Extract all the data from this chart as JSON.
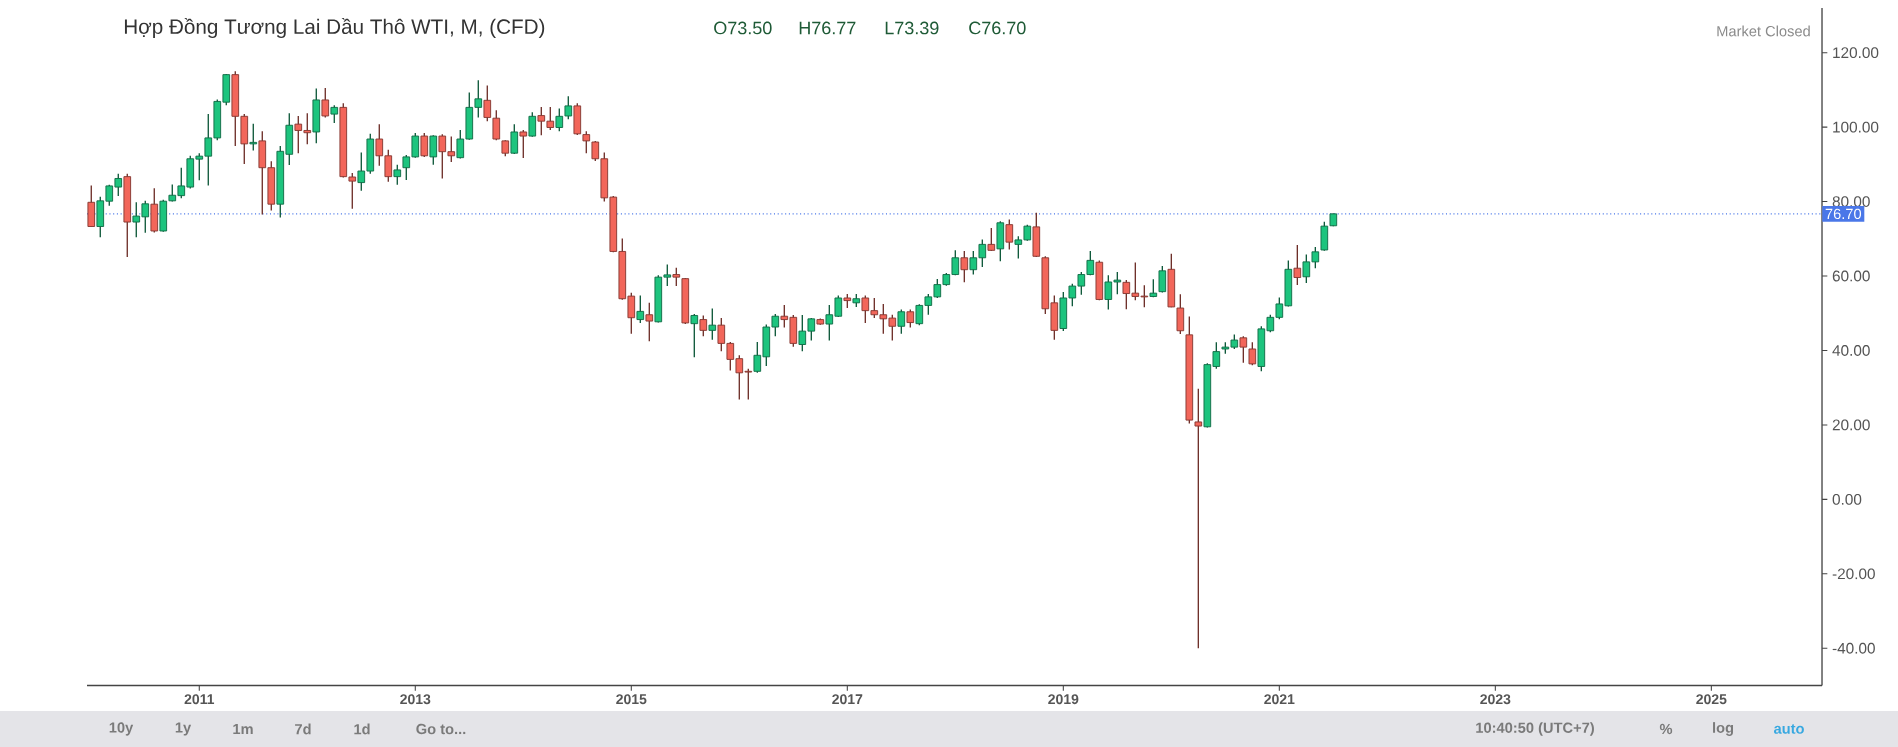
{
  "chart_data": {
    "type": "candlestick",
    "title": "Hợp Đồng Tương Lai Dầu Thô WTI, M, (CFD)",
    "annotations": [
      "O73.50",
      "H76.77",
      "L73.39",
      "C76.70",
      "Market Closed",
      "10y",
      "1y",
      "1m",
      "7d",
      "1d",
      "Go to...",
      "10:40:50 (UTC+7)",
      "%",
      "log",
      "auto"
    ],
    "x": [
      "2010-01",
      "2010-02",
      "2010-03",
      "2010-04",
      "2010-05",
      "2010-06",
      "2010-07",
      "2010-08",
      "2010-09",
      "2010-10",
      "2010-11",
      "2010-12",
      "2011-01",
      "2011-02",
      "2011-03",
      "2011-04",
      "2011-05",
      "2011-06",
      "2011-07",
      "2011-08",
      "2011-09",
      "2011-10",
      "2011-11",
      "2011-12",
      "2012-01",
      "2012-02",
      "2012-03",
      "2012-04",
      "2012-05",
      "2012-06",
      "2012-07",
      "2012-08",
      "2012-09",
      "2012-10",
      "2012-11",
      "2012-12",
      "2013-01",
      "2013-02",
      "2013-03",
      "2013-04",
      "2013-05",
      "2013-06",
      "2013-07",
      "2013-08",
      "2013-09",
      "2013-10",
      "2013-11",
      "2013-12",
      "2014-01",
      "2014-02",
      "2014-03",
      "2014-04",
      "2014-05",
      "2014-06",
      "2014-07",
      "2014-08",
      "2014-09",
      "2014-10",
      "2014-11",
      "2014-12",
      "2015-01",
      "2015-02",
      "2015-03",
      "2015-04",
      "2015-05",
      "2015-06",
      "2015-07",
      "2015-08",
      "2015-09",
      "2015-10",
      "2015-11",
      "2015-12",
      "2016-01",
      "2016-02",
      "2016-03",
      "2016-04",
      "2016-05",
      "2016-06",
      "2016-07",
      "2016-08",
      "2016-09",
      "2016-10",
      "2016-11",
      "2016-12",
      "2017-01",
      "2017-02",
      "2017-03",
      "2017-04",
      "2017-05",
      "2017-06",
      "2017-07",
      "2017-08",
      "2017-09",
      "2017-10",
      "2017-11",
      "2017-12",
      "2018-01",
      "2018-02",
      "2018-03",
      "2018-04",
      "2018-05",
      "2018-06",
      "2018-07",
      "2018-08",
      "2018-09",
      "2018-10",
      "2018-11",
      "2018-12",
      "2019-01",
      "2019-02",
      "2019-03",
      "2019-04",
      "2019-05",
      "2019-06",
      "2019-07",
      "2019-08",
      "2019-09",
      "2019-10",
      "2019-11",
      "2019-12",
      "2020-01",
      "2020-02",
      "2020-03",
      "2020-04",
      "2020-05",
      "2020-06",
      "2020-07",
      "2020-08",
      "2020-09",
      "2020-10",
      "2020-11",
      "2020-12",
      "2021-01",
      "2021-02",
      "2021-03",
      "2021-04",
      "2021-05",
      "2021-06",
      "2021-07"
    ],
    "ohlc": [
      [
        79.8,
        84.3,
        73.3,
        73.3
      ],
      [
        73.3,
        81.3,
        70.4,
        80.2
      ],
      [
        80.1,
        84.5,
        78.9,
        84.2
      ],
      [
        83.9,
        87.5,
        81.5,
        86.2
      ],
      [
        86.7,
        87.5,
        65.1,
        74.5
      ],
      [
        74.5,
        79.8,
        70.4,
        76.1
      ],
      [
        75.9,
        80.2,
        71.6,
        79.4
      ],
      [
        79.3,
        83.6,
        71.7,
        72.1
      ],
      [
        72.1,
        80.5,
        71.9,
        80.1
      ],
      [
        80.2,
        84.6,
        80.0,
        81.7
      ],
      [
        81.6,
        89.1,
        80.9,
        84.2
      ],
      [
        83.9,
        92.3,
        83.5,
        91.5
      ],
      [
        91.4,
        93.0,
        85.7,
        92.2
      ],
      [
        92.2,
        103.5,
        84.3,
        97.1
      ],
      [
        97.1,
        107.4,
        96.5,
        106.9
      ],
      [
        106.7,
        114.3,
        105.9,
        114.1
      ],
      [
        114.1,
        115.0,
        94.9,
        102.9
      ],
      [
        102.9,
        103.5,
        90.1,
        95.5
      ],
      [
        95.5,
        100.9,
        93.7,
        95.9
      ],
      [
        96.3,
        98.9,
        76.5,
        89.1
      ],
      [
        89.1,
        90.8,
        77.6,
        79.3
      ],
      [
        79.3,
        94.9,
        75.7,
        93.5
      ],
      [
        92.7,
        103.7,
        89.8,
        100.5
      ],
      [
        100.8,
        103.0,
        93.0,
        99.1
      ],
      [
        99.1,
        103.7,
        95.4,
        98.5
      ],
      [
        98.7,
        110.4,
        95.7,
        107.3
      ],
      [
        107.3,
        110.5,
        102.6,
        103.0
      ],
      [
        103.5,
        105.9,
        101.1,
        105.3
      ],
      [
        105.3,
        106.4,
        86.5,
        86.7
      ],
      [
        86.6,
        87.7,
        78.1,
        85.5
      ],
      [
        85.1,
        93.2,
        82.9,
        88.2
      ],
      [
        88.2,
        98.2,
        87.5,
        96.8
      ],
      [
        96.8,
        100.8,
        89.6,
        92.3
      ],
      [
        92.3,
        93.9,
        85.3,
        86.7
      ],
      [
        86.7,
        89.9,
        84.5,
        88.5
      ],
      [
        89.1,
        92.5,
        85.8,
        92.0
      ],
      [
        92.0,
        98.4,
        91.8,
        97.6
      ],
      [
        97.6,
        98.4,
        92.0,
        92.3
      ],
      [
        92.0,
        97.8,
        89.9,
        97.6
      ],
      [
        97.6,
        98.1,
        86.2,
        93.4
      ],
      [
        93.4,
        97.5,
        90.6,
        92.3
      ],
      [
        91.8,
        99.2,
        91.6,
        96.8
      ],
      [
        96.8,
        109.3,
        96.6,
        105.3
      ],
      [
        105.3,
        112.6,
        102.6,
        107.6
      ],
      [
        107.2,
        111.2,
        101.6,
        102.6
      ],
      [
        102.4,
        104.5,
        96.5,
        96.8
      ],
      [
        96.3,
        96.5,
        92.2,
        93.0
      ],
      [
        93.0,
        100.8,
        92.8,
        98.7
      ],
      [
        98.7,
        99.2,
        91.7,
        97.6
      ],
      [
        97.6,
        104.0,
        97.4,
        102.9
      ],
      [
        103.1,
        105.4,
        97.8,
        101.6
      ],
      [
        101.6,
        105.4,
        99.2,
        99.9
      ],
      [
        99.9,
        105.0,
        98.9,
        102.9
      ],
      [
        103.0,
        108.3,
        102.1,
        105.7
      ],
      [
        105.7,
        106.4,
        97.9,
        98.2
      ],
      [
        98.0,
        98.9,
        93.0,
        96.3
      ],
      [
        96.0,
        96.3,
        90.9,
        91.5
      ],
      [
        91.5,
        93.2,
        80.0,
        81.0
      ],
      [
        81.2,
        81.5,
        66.4,
        66.6
      ],
      [
        66.6,
        70.1,
        53.6,
        53.9
      ],
      [
        54.6,
        55.5,
        44.5,
        48.8
      ],
      [
        48.3,
        54.8,
        47.4,
        50.5
      ],
      [
        49.6,
        52.8,
        42.5,
        47.9
      ],
      [
        47.7,
        60.2,
        47.5,
        59.7
      ],
      [
        59.7,
        63.1,
        57.3,
        60.3
      ],
      [
        60.4,
        62.2,
        57.3,
        59.7
      ],
      [
        59.3,
        59.5,
        47.1,
        47.4
      ],
      [
        47.2,
        49.8,
        38.2,
        49.4
      ],
      [
        48.3,
        49.4,
        43.8,
        45.4
      ],
      [
        45.4,
        51.3,
        42.9,
        46.8
      ],
      [
        46.8,
        48.7,
        39.8,
        41.9
      ],
      [
        41.9,
        42.3,
        34.6,
        37.6
      ],
      [
        37.8,
        38.7,
        26.8,
        34.0
      ],
      [
        34.4,
        35.1,
        26.8,
        34.2
      ],
      [
        34.4,
        42.3,
        34.0,
        38.7
      ],
      [
        38.3,
        47.0,
        35.8,
        46.3
      ],
      [
        46.3,
        49.8,
        43.8,
        49.2
      ],
      [
        49.2,
        52.2,
        46.2,
        48.3
      ],
      [
        48.9,
        49.5,
        41.0,
        41.9
      ],
      [
        41.6,
        49.5,
        39.8,
        45.2
      ],
      [
        45.2,
        48.7,
        42.7,
        48.5
      ],
      [
        48.3,
        48.6,
        46.9,
        47.1
      ],
      [
        47.1,
        52.2,
        42.7,
        49.6
      ],
      [
        49.2,
        54.8,
        49.0,
        54.1
      ],
      [
        54.1,
        55.2,
        51.4,
        53.4
      ],
      [
        52.8,
        55.2,
        51.7,
        53.9
      ],
      [
        54.1,
        54.8,
        47.4,
        50.7
      ],
      [
        50.7,
        54.1,
        48.7,
        49.6
      ],
      [
        49.6,
        52.5,
        44.5,
        48.5
      ],
      [
        48.7,
        49.6,
        42.7,
        46.5
      ],
      [
        46.5,
        51.0,
        44.5,
        50.4
      ],
      [
        50.4,
        51.0,
        46.2,
        47.5
      ],
      [
        47.2,
        52.4,
        46.8,
        52.1
      ],
      [
        52.1,
        55.2,
        49.6,
        54.4
      ],
      [
        54.4,
        59.2,
        54.1,
        57.7
      ],
      [
        57.7,
        60.8,
        57.4,
        60.4
      ],
      [
        60.4,
        66.9,
        60.2,
        64.9
      ],
      [
        64.9,
        66.7,
        58.3,
        61.7
      ],
      [
        61.7,
        66.7,
        60.4,
        64.9
      ],
      [
        64.9,
        69.8,
        62.4,
        68.5
      ],
      [
        68.5,
        72.9,
        66.7,
        66.9
      ],
      [
        67.3,
        74.7,
        64.0,
        74.3
      ],
      [
        73.8,
        75.2,
        67.1,
        69.1
      ],
      [
        68.5,
        70.7,
        64.7,
        69.7
      ],
      [
        69.7,
        73.8,
        69.5,
        73.4
      ],
      [
        73.2,
        77.0,
        65.1,
        65.3
      ],
      [
        64.9,
        65.3,
        49.8,
        51.2
      ],
      [
        52.8,
        54.8,
        42.9,
        45.4
      ],
      [
        45.9,
        55.7,
        45.2,
        54.1
      ],
      [
        54.1,
        57.9,
        51.9,
        57.3
      ],
      [
        57.3,
        61.1,
        55.0,
        60.4
      ],
      [
        60.4,
        66.7,
        60.2,
        64.2
      ],
      [
        63.7,
        64.2,
        53.5,
        53.7
      ],
      [
        53.7,
        60.2,
        51.0,
        58.4
      ],
      [
        58.4,
        61.1,
        55.1,
        58.9
      ],
      [
        58.3,
        58.9,
        51.1,
        55.3
      ],
      [
        55.4,
        63.6,
        53.5,
        54.5
      ],
      [
        54.6,
        57.5,
        51.6,
        54.4
      ],
      [
        54.5,
        59.1,
        54.3,
        55.4
      ],
      [
        55.8,
        62.7,
        55.6,
        61.4
      ],
      [
        61.8,
        66.0,
        51.6,
        51.7
      ],
      [
        51.4,
        55.1,
        44.4,
        45.3
      ],
      [
        44.2,
        49.1,
        20.4,
        21.3
      ],
      [
        20.8,
        29.7,
        -40.0,
        19.7
      ],
      [
        19.5,
        36.6,
        19.3,
        36.2
      ],
      [
        35.7,
        42.2,
        35.1,
        39.7
      ],
      [
        40.4,
        42.2,
        39.1,
        40.9
      ],
      [
        40.9,
        44.3,
        40.4,
        42.8
      ],
      [
        43.4,
        43.8,
        36.7,
        40.9
      ],
      [
        40.4,
        42.2,
        36.0,
        36.4
      ],
      [
        35.7,
        46.5,
        34.4,
        45.8
      ],
      [
        45.3,
        49.6,
        44.9,
        48.9
      ],
      [
        48.9,
        54.2,
        48.4,
        52.5
      ],
      [
        52.0,
        64.2,
        51.8,
        61.8
      ],
      [
        62.1,
        68.3,
        57.6,
        59.6
      ],
      [
        59.8,
        65.8,
        58.1,
        63.8
      ],
      [
        63.8,
        67.8,
        62.1,
        66.5
      ],
      [
        67.0,
        74.6,
        66.8,
        73.4
      ],
      [
        73.5,
        76.77,
        73.39,
        76.7
      ]
    ],
    "colors": [
      "#f2665a",
      "#1dc47e",
      "#1dc47e",
      "#1dc47e",
      "#f2665a",
      "#1dc47e",
      "#1dc47e",
      "#f2665a",
      "#1dc47e",
      "#1dc47e",
      "#1dc47e",
      "#1dc47e",
      "#1dc47e",
      "#1dc47e",
      "#1dc47e",
      "#1dc47e",
      "#f2665a",
      "#f2665a",
      "#1dc47e",
      "#f2665a",
      "#f2665a",
      "#1dc47e",
      "#1dc47e",
      "#f2665a",
      "#f2665a",
      "#1dc47e",
      "#f2665a",
      "#1dc47e",
      "#f2665a",
      "#f2665a",
      "#1dc47e",
      "#1dc47e",
      "#f2665a",
      "#f2665a",
      "#1dc47e",
      "#1dc47e",
      "#1dc47e",
      "#f2665a",
      "#1dc47e",
      "#f2665a",
      "#f2665a",
      "#1dc47e",
      "#1dc47e",
      "#1dc47e",
      "#f2665a",
      "#f2665a",
      "#f2665a",
      "#1dc47e",
      "#f2665a",
      "#1dc47e",
      "#f2665a",
      "#f2665a",
      "#1dc47e",
      "#1dc47e",
      "#f2665a",
      "#f2665a",
      "#f2665a",
      "#f2665a",
      "#f2665a",
      "#f2665a",
      "#f2665a",
      "#1dc47e",
      "#f2665a",
      "#1dc47e",
      "#1dc47e",
      "#f2665a",
      "#f2665a",
      "#1dc47e",
      "#f2665a",
      "#1dc47e",
      "#f2665a",
      "#f2665a",
      "#f2665a",
      "#f2665a",
      "#1dc47e",
      "#1dc47e",
      "#1dc47e",
      "#f2665a",
      "#f2665a",
      "#1dc47e",
      "#1dc47e",
      "#f2665a",
      "#1dc47e",
      "#1dc47e",
      "#f2665a",
      "#1dc47e",
      "#f2665a",
      "#f2665a",
      "#f2665a",
      "#f2665a",
      "#1dc47e",
      "#f2665a",
      "#1dc47e",
      "#1dc47e",
      "#1dc47e",
      "#1dc47e",
      "#1dc47e",
      "#f2665a",
      "#1dc47e",
      "#1dc47e",
      "#f2665a",
      "#1dc47e",
      "#f2665a",
      "#1dc47e",
      "#1dc47e",
      "#f2665a",
      "#f2665a",
      "#f2665a",
      "#1dc47e",
      "#1dc47e",
      "#1dc47e",
      "#1dc47e",
      "#f2665a",
      "#1dc47e",
      "#1dc47e",
      "#f2665a",
      "#f2665a",
      "#f2665a",
      "#1dc47e",
      "#1dc47e",
      "#f2665a",
      "#f2665a",
      "#f2665a",
      "#f2665a",
      "#1dc47e",
      "#1dc47e",
      "#1dc47e",
      "#1dc47e",
      "#f2665a",
      "#f2665a",
      "#1dc47e",
      "#1dc47e",
      "#1dc47e",
      "#1dc47e",
      "#f2665a",
      "#1dc47e",
      "#1dc47e",
      "#1dc47e",
      "#1dc47e"
    ],
    "xlim": [
      "2009-12-17",
      "2026-01-10"
    ],
    "xticks": [
      "2011",
      "2013",
      "2015",
      "2017",
      "2019",
      "2021",
      "2023",
      "2025"
    ],
    "ylim": [
      -50,
      132
    ],
    "yticks": [
      {
        "value": -40,
        "label": "-40.00"
      },
      {
        "value": -20,
        "label": "-20.00"
      },
      {
        "value": 0,
        "label": "0.00"
      },
      {
        "value": 20,
        "label": "20.00"
      },
      {
        "value": 40,
        "label": "40.00"
      },
      {
        "value": 60,
        "label": "60.00"
      },
      {
        "value": 80,
        "label": "80.00"
      },
      {
        "value": 100,
        "label": "100.00"
      },
      {
        "value": 120,
        "label": "120.00"
      }
    ],
    "ref_lines": [
      {
        "axis": "y",
        "value": 76.7,
        "label": "76.70",
        "color": "#4a77e8",
        "line_style": "dotted"
      }
    ]
  }
}
